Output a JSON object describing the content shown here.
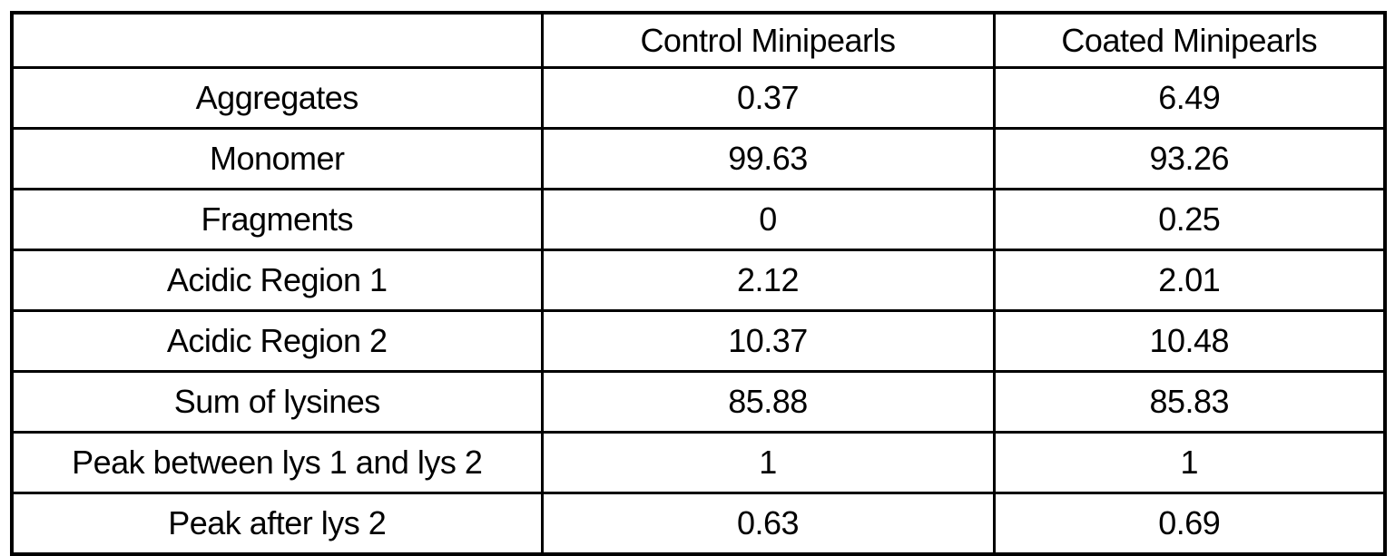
{
  "table": {
    "columns": [
      "",
      "Control Minipearls",
      "Coated Minipearls"
    ],
    "rows": [
      {
        "label": "Aggregates",
        "control": "0.37",
        "coated": "6.49"
      },
      {
        "label": "Monomer",
        "control": "99.63",
        "coated": "93.26"
      },
      {
        "label": "Fragments",
        "control": "0",
        "coated": "0.25"
      },
      {
        "label": "Acidic Region 1",
        "control": "2.12",
        "coated": "2.01"
      },
      {
        "label": "Acidic Region 2",
        "control": "10.37",
        "coated": "10.48"
      },
      {
        "label": "Sum of lysines",
        "control": "85.88",
        "coated": "85.83"
      },
      {
        "label": "Peak between lys 1 and lys 2",
        "control": "1",
        "coated": "1"
      },
      {
        "label": "Peak after lys 2",
        "control": "0.63",
        "coated": "0.69"
      }
    ],
    "colors": {
      "border": "#000000",
      "text": "#000000",
      "background": "#ffffff"
    }
  },
  "chart_data": {
    "type": "table",
    "title": "",
    "categories": [
      "Aggregates",
      "Monomer",
      "Fragments",
      "Acidic Region 1",
      "Acidic Region 2",
      "Sum of lysines",
      "Peak between lys 1 and lys 2",
      "Peak after lys 2"
    ],
    "series": [
      {
        "name": "Control Minipearls",
        "values": [
          0.37,
          99.63,
          0,
          2.12,
          10.37,
          85.88,
          1,
          0.63
        ]
      },
      {
        "name": "Coated Minipearls",
        "values": [
          6.49,
          93.26,
          0.25,
          2.01,
          10.48,
          85.83,
          1,
          0.69
        ]
      }
    ]
  }
}
